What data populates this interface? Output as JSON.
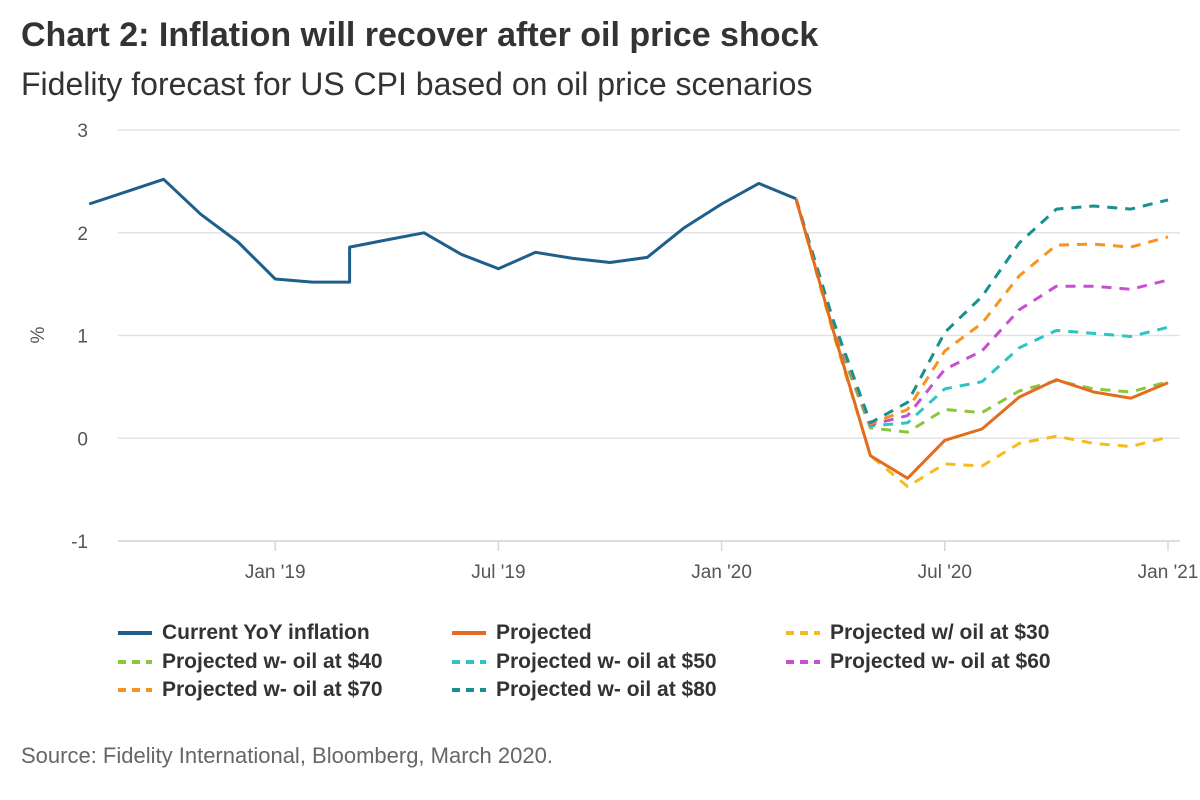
{
  "chart_data": {
    "type": "line",
    "title": "Chart 2: Inflation will recover after oil price shock",
    "subtitle": "Fidelity forecast for US CPI based on oil price scenarios",
    "ylabel": "%",
    "xlabel": "",
    "ylim": [
      -1,
      3
    ],
    "yticks": [
      "3",
      "2",
      "1",
      "0",
      "-1"
    ],
    "x_ticks": [
      {
        "label": "Jan '19",
        "x": "2019-01"
      },
      {
        "label": "Jul '19",
        "x": "2019-07"
      },
      {
        "label": "Jan '20",
        "x": "2020-01"
      },
      {
        "label": "Jul '20",
        "x": "2020-07"
      },
      {
        "label": "Jan '21",
        "x": "2021-01"
      }
    ],
    "x_range": [
      "2018-07",
      "2021-01"
    ],
    "grid": "horizontal",
    "legend_position": "bottom",
    "series": [
      {
        "name": "Current YoY inflation",
        "color": "#1f5f8b",
        "style": "solid",
        "x": [
          "2018-08",
          "2018-09",
          "2018-10",
          "2018-11",
          "2018-12",
          "2019-01",
          "2019-02",
          "2019-03",
          "2019-03",
          "2019-04",
          "2019-05",
          "2019-06",
          "2019-07",
          "2019-08",
          "2019-09",
          "2019-10",
          "2019-11",
          "2019-12",
          "2020-01",
          "2020-02",
          "2020-03"
        ],
        "values": [
          2.28,
          2.4,
          2.52,
          2.18,
          1.91,
          1.55,
          1.52,
          1.52,
          1.86,
          1.93,
          2.0,
          1.79,
          1.65,
          1.81,
          1.75,
          1.71,
          1.76,
          2.05,
          2.28,
          2.48,
          2.33
        ]
      },
      {
        "name": "Projected",
        "color": "#e36c1f",
        "style": "solid",
        "x": [
          "2020-03",
          "2020-04",
          "2020-05",
          "2020-06",
          "2020-07",
          "2020-08",
          "2020-09",
          "2020-10",
          "2020-11",
          "2020-12",
          "2021-01"
        ],
        "values": [
          2.33,
          1.05,
          -0.17,
          -0.39,
          -0.02,
          0.09,
          0.4,
          0.57,
          0.45,
          0.39,
          0.54
        ]
      },
      {
        "name": "Projected w/ oil at $30",
        "color": "#f6bc1e",
        "style": "dashed",
        "x": [
          "2020-03",
          "2020-04",
          "2020-05",
          "2020-06",
          "2020-07",
          "2020-08",
          "2020-09",
          "2020-10",
          "2020-11",
          "2020-12",
          "2021-01"
        ],
        "values": [
          2.33,
          1.02,
          -0.17,
          -0.47,
          -0.25,
          -0.27,
          -0.05,
          0.02,
          -0.05,
          -0.08,
          0.01
        ]
      },
      {
        "name": "Projected w- oil at $40",
        "color": "#8cc63f",
        "style": "dashed",
        "x": [
          "2020-03",
          "2020-04",
          "2020-05",
          "2020-06",
          "2020-07",
          "2020-08",
          "2020-09",
          "2020-10",
          "2020-11",
          "2020-12",
          "2021-01"
        ],
        "values": [
          2.33,
          1.05,
          0.1,
          0.06,
          0.28,
          0.25,
          0.46,
          0.56,
          0.48,
          0.45,
          0.55
        ]
      },
      {
        "name": "Projected w- oil at $50",
        "color": "#2ec4c4",
        "style": "dashed",
        "x": [
          "2020-03",
          "2020-04",
          "2020-05",
          "2020-06",
          "2020-07",
          "2020-08",
          "2020-09",
          "2020-10",
          "2020-11",
          "2020-12",
          "2021-01"
        ],
        "values": [
          2.33,
          1.08,
          0.12,
          0.15,
          0.48,
          0.55,
          0.88,
          1.05,
          1.02,
          0.99,
          1.08
        ]
      },
      {
        "name": "Projected w- oil at $60",
        "color": "#c94fd1",
        "style": "dashed",
        "x": [
          "2020-03",
          "2020-04",
          "2020-05",
          "2020-06",
          "2020-07",
          "2020-08",
          "2020-09",
          "2020-10",
          "2020-11",
          "2020-12",
          "2021-01"
        ],
        "values": [
          2.33,
          1.1,
          0.13,
          0.22,
          0.67,
          0.85,
          1.25,
          1.48,
          1.48,
          1.45,
          1.54
        ]
      },
      {
        "name": "Projected w- oil at $70",
        "color": "#f7941d",
        "style": "dashed",
        "x": [
          "2020-03",
          "2020-04",
          "2020-05",
          "2020-06",
          "2020-07",
          "2020-08",
          "2020-09",
          "2020-10",
          "2020-11",
          "2020-12",
          "2021-01"
        ],
        "values": [
          2.33,
          1.12,
          0.14,
          0.28,
          0.85,
          1.12,
          1.58,
          1.88,
          1.89,
          1.86,
          1.96
        ]
      },
      {
        "name": "Projected w- oil at $80",
        "color": "#17908e",
        "style": "dashed",
        "x": [
          "2020-03",
          "2020-04",
          "2020-05",
          "2020-06",
          "2020-07",
          "2020-08",
          "2020-09",
          "2020-10",
          "2020-11",
          "2020-12",
          "2021-01"
        ],
        "values": [
          2.33,
          1.15,
          0.15,
          0.35,
          1.03,
          1.38,
          1.9,
          2.23,
          2.26,
          2.23,
          2.32
        ]
      }
    ],
    "source": "Source: Fidelity International, Bloomberg, March 2020."
  }
}
